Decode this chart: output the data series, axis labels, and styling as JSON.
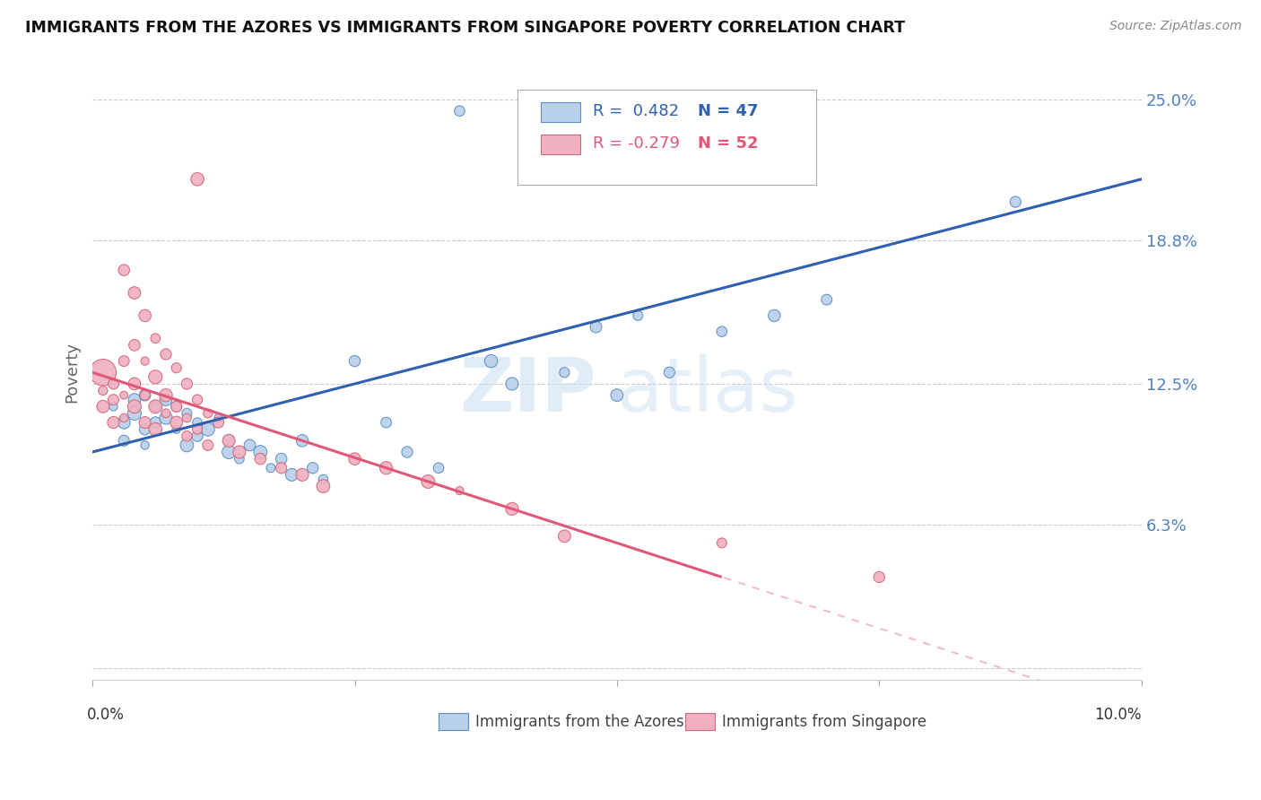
{
  "title": "IMMIGRANTS FROM THE AZORES VS IMMIGRANTS FROM SINGAPORE POVERTY CORRELATION CHART",
  "source": "Source: ZipAtlas.com",
  "ylabel": "Poverty",
  "y_ticks": [
    0.0,
    0.063,
    0.125,
    0.188,
    0.25
  ],
  "y_tick_labels": [
    "",
    "6.3%",
    "12.5%",
    "18.8%",
    "25.0%"
  ],
  "x_min": 0.0,
  "x_max": 0.1,
  "y_min": -0.005,
  "y_max": 0.265,
  "legend_r1": "R =  0.482",
  "legend_n1": "N = 47",
  "legend_r2": "R = -0.279",
  "legend_n2": "N = 52",
  "legend_label_azores": "Immigrants from the Azores",
  "legend_label_singapore": "Immigrants from Singapore",
  "watermark_zip": "ZIP",
  "watermark_atlas": "atlas",
  "azores_fill": "#b8d0ea",
  "azores_edge": "#5b8ec4",
  "singapore_fill": "#f0b0c0",
  "singapore_edge": "#d06878",
  "azores_line_color": "#3060b0",
  "singapore_line_color": "#e05878",
  "background_color": "#ffffff",
  "grid_color": "#cccccc",
  "title_color": "#111111",
  "source_color": "#888888",
  "ytick_color": "#5080c0",
  "ylabel_color": "#666666",
  "xlabel_color": "#333333",
  "legend_r_color_blue": "#3060b0",
  "legend_n_color_blue": "#3060b0",
  "legend_r_color_pink": "#e05878",
  "legend_n_color_pink": "#e05878"
}
